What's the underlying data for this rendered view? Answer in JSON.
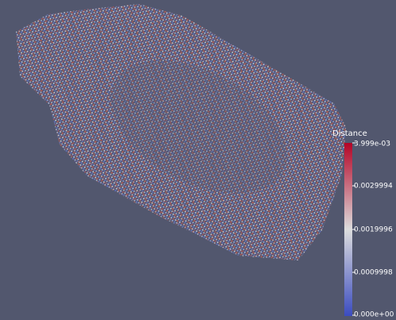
{
  "colorbar": {
    "title": "Distance",
    "labels": [
      "3.999e-03",
      "0.0029994",
      "0.0019996",
      "0.0009998",
      "0.000e+00"
    ]
  }
}
